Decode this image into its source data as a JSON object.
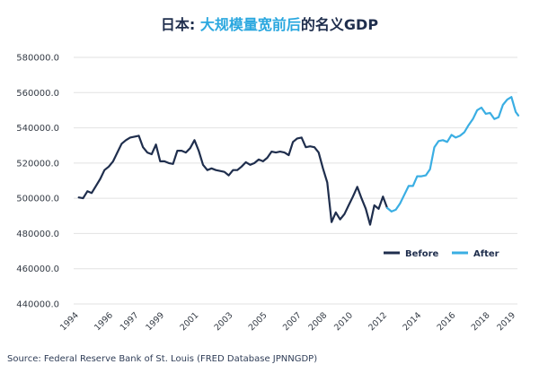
{
  "chart_data": {
    "type": "line",
    "title_prefix": "日本: ",
    "title_highlight": "大规模量宽前后",
    "title_suffix": "的名义GDP",
    "xlabel": "",
    "ylabel": "",
    "ylim": [
      440000,
      580000
    ],
    "xlim": [
      1993.7,
      2019.6
    ],
    "yticks": [
      "440000.0",
      "460000.0",
      "480000.0",
      "500000.0",
      "520000.0",
      "540000.0",
      "560000.0",
      "580000.0"
    ],
    "ytick_values": [
      440000,
      460000,
      480000,
      500000,
      520000,
      540000,
      560000,
      580000
    ],
    "xticks": [
      "1994",
      "1996",
      "1997",
      "1999",
      "2001",
      "2003",
      "2005",
      "2007",
      "2008",
      "2010",
      "2012",
      "2014",
      "2016",
      "2018",
      "2019"
    ],
    "xtick_values": [
      1994,
      1996,
      1997.5,
      1999,
      2001,
      2003,
      2005,
      2007,
      2008.5,
      2010,
      2012,
      2014,
      2016,
      2018,
      2019.5
    ],
    "grid": "horizontal",
    "legend_position": "bottom-right",
    "colors": {
      "before": "#1f2e4d",
      "after": "#3aaee3",
      "grid": "#e2e2e2",
      "title_dark": "#1f2e4d",
      "title_blue": "#2aa7df"
    },
    "series": [
      {
        "name": "Before",
        "color": "#1f2e4d",
        "x": [
          1994.0,
          1994.25,
          1994.5,
          1994.75,
          1995.0,
          1995.25,
          1995.5,
          1995.75,
          1996.0,
          1996.25,
          1996.5,
          1996.75,
          1997.0,
          1997.25,
          1997.5,
          1997.75,
          1998.0,
          1998.25,
          1998.5,
          1998.75,
          1999.0,
          1999.25,
          1999.5,
          1999.75,
          2000.0,
          2000.25,
          2000.5,
          2000.75,
          2001.0,
          2001.25,
          2001.5,
          2001.75,
          2002.0,
          2002.25,
          2002.5,
          2002.75,
          2003.0,
          2003.25,
          2003.5,
          2003.75,
          2004.0,
          2004.25,
          2004.5,
          2004.75,
          2005.0,
          2005.25,
          2005.5,
          2005.75,
          2006.0,
          2006.25,
          2006.5,
          2006.75,
          2007.0,
          2007.25,
          2007.5,
          2007.75,
          2008.0,
          2008.25,
          2008.5,
          2008.75,
          2009.0,
          2009.25,
          2009.5,
          2009.75,
          2010.0,
          2010.25,
          2010.5,
          2010.75,
          2011.0,
          2011.25,
          2011.5,
          2011.75,
          2012.0
        ],
        "values": [
          500500,
          500000,
          504000,
          503000,
          507000,
          511000,
          516000,
          518000,
          521000,
          526000,
          531000,
          533000,
          534500,
          535000,
          535500,
          529000,
          526000,
          525000,
          530500,
          521000,
          521000,
          520000,
          519500,
          527000,
          527000,
          526000,
          528500,
          533000,
          527000,
          519000,
          516000,
          517000,
          516000,
          515500,
          515000,
          513000,
          516000,
          516000,
          518000,
          520500,
          519000,
          520000,
          522000,
          521000,
          523000,
          526500,
          526000,
          526500,
          526000,
          524500,
          532000,
          534000,
          534500,
          529000,
          529500,
          529000,
          526000,
          517000,
          509000,
          486500,
          492000,
          488000,
          491000,
          496000,
          501000,
          506500,
          500000,
          494000,
          485000,
          496000,
          494000,
          501000,
          494500
        ]
      },
      {
        "name": "After",
        "color": "#3aaee3",
        "x": [
          2012.0,
          2012.25,
          2012.5,
          2012.75,
          2013.0,
          2013.25,
          2013.5,
          2013.75,
          2014.0,
          2014.25,
          2014.5,
          2014.75,
          2015.0,
          2015.25,
          2015.5,
          2015.75,
          2016.0,
          2016.25,
          2016.5,
          2016.75,
          2017.0,
          2017.25,
          2017.5,
          2017.75,
          2018.0,
          2018.25,
          2018.5,
          2018.75,
          2019.0,
          2019.25,
          2019.5,
          2019.65
        ],
        "values": [
          494500,
          492500,
          493500,
          497000,
          502000,
          507000,
          507000,
          512500,
          512500,
          513000,
          516500,
          529000,
          532500,
          533000,
          532000,
          536000,
          534500,
          535500,
          537500,
          541500,
          545000,
          550000,
          551500,
          548000,
          548500,
          545000,
          546000,
          553000,
          556000,
          557500,
          549000,
          547000
        ]
      }
    ],
    "source_text": "Source: Federal Reserve Bank of St. Louis (FRED Database JPNNGDP)"
  }
}
